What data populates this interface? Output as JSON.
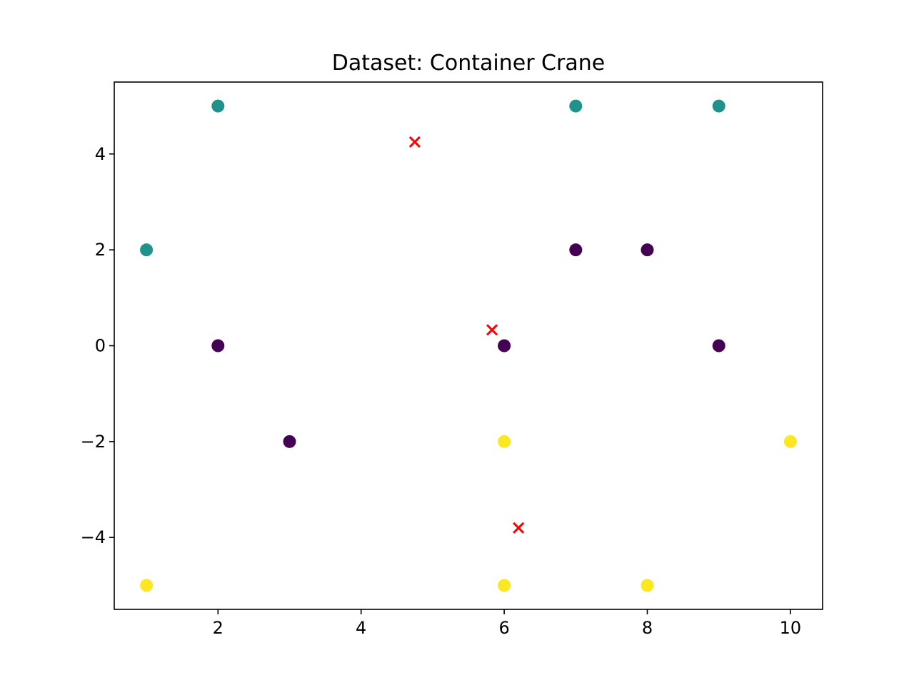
{
  "chart_data": {
    "type": "scatter",
    "title": "Dataset: Container Crane",
    "xlabel": "",
    "ylabel": "",
    "xlim": [
      0.55,
      10.45
    ],
    "ylim": [
      -5.5,
      5.5
    ],
    "x_ticks": [
      2,
      4,
      6,
      8,
      10
    ],
    "y_ticks": [
      -4,
      -2,
      0,
      2,
      4
    ],
    "x_tick_labels": [
      "2",
      "4",
      "6",
      "8",
      "10"
    ],
    "y_tick_labels": [
      "−4",
      "−2",
      "0",
      "2",
      "4"
    ],
    "grid": false,
    "legend": "none",
    "series": [
      {
        "color": "#440154",
        "marker": "circle",
        "points": [
          [
            2,
            0
          ],
          [
            3,
            -2
          ],
          [
            6,
            0
          ],
          [
            7,
            2
          ],
          [
            8,
            2
          ],
          [
            9,
            0
          ]
        ]
      },
      {
        "color": "#21918c",
        "marker": "circle",
        "points": [
          [
            1,
            2
          ],
          [
            2,
            5
          ],
          [
            7,
            5
          ],
          [
            9,
            5
          ]
        ]
      },
      {
        "color": "#fde725",
        "marker": "circle",
        "points": [
          [
            1,
            -5
          ],
          [
            6,
            -2
          ],
          [
            6,
            -5
          ],
          [
            8,
            -5
          ],
          [
            10,
            -2
          ]
        ]
      },
      {
        "color": "#ff0000",
        "marker": "x",
        "points": [
          [
            4.75,
            4.25
          ],
          [
            5.83,
            0.33
          ],
          [
            6.2,
            -3.8
          ]
        ]
      }
    ]
  }
}
